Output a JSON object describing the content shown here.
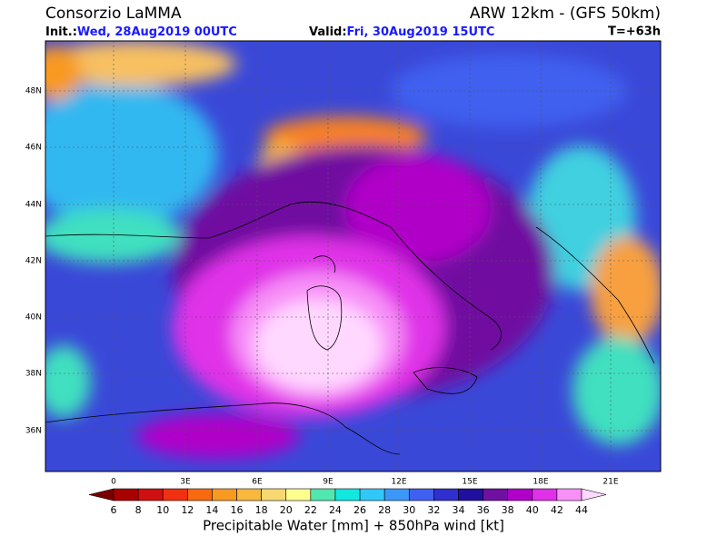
{
  "header": {
    "title": "Consorzio LaMMA",
    "model": "ARW 12km - (GFS 50km)",
    "init_label": "Init.:",
    "init": "Wed, 28Aug2019 00UTC",
    "valid_label": "Valid:",
    "valid": "Fri, 30Aug2019 15UTC",
    "lead": "T=+63h"
  },
  "map": {
    "lat_labels": [
      "48N",
      "46N",
      "44N",
      "42N",
      "40N",
      "38N",
      "36N"
    ],
    "lon_labels": [
      "0",
      "3E",
      "6E",
      "9E",
      "12E",
      "15E",
      "18E",
      "21E"
    ]
  },
  "legend": {
    "ticks": [
      6,
      8,
      10,
      12,
      14,
      16,
      18,
      20,
      22,
      24,
      26,
      28,
      30,
      32,
      34,
      36,
      38,
      40,
      42,
      44
    ],
    "colors": [
      "#7a0000",
      "#a80000",
      "#d01010",
      "#f03010",
      "#f86a10",
      "#f89a20",
      "#f8b840",
      "#f8d870",
      "#ffff90",
      "#50e8b0",
      "#10e8e0",
      "#30c8f8",
      "#3c98f8",
      "#4060f0",
      "#3030d0",
      "#2010a0",
      "#7010a0",
      "#b000c8",
      "#e030e8",
      "#f890f8",
      "#ffd8ff"
    ],
    "caption": "Precipitable Water [mm] + 850hPa wind [kt]"
  }
}
